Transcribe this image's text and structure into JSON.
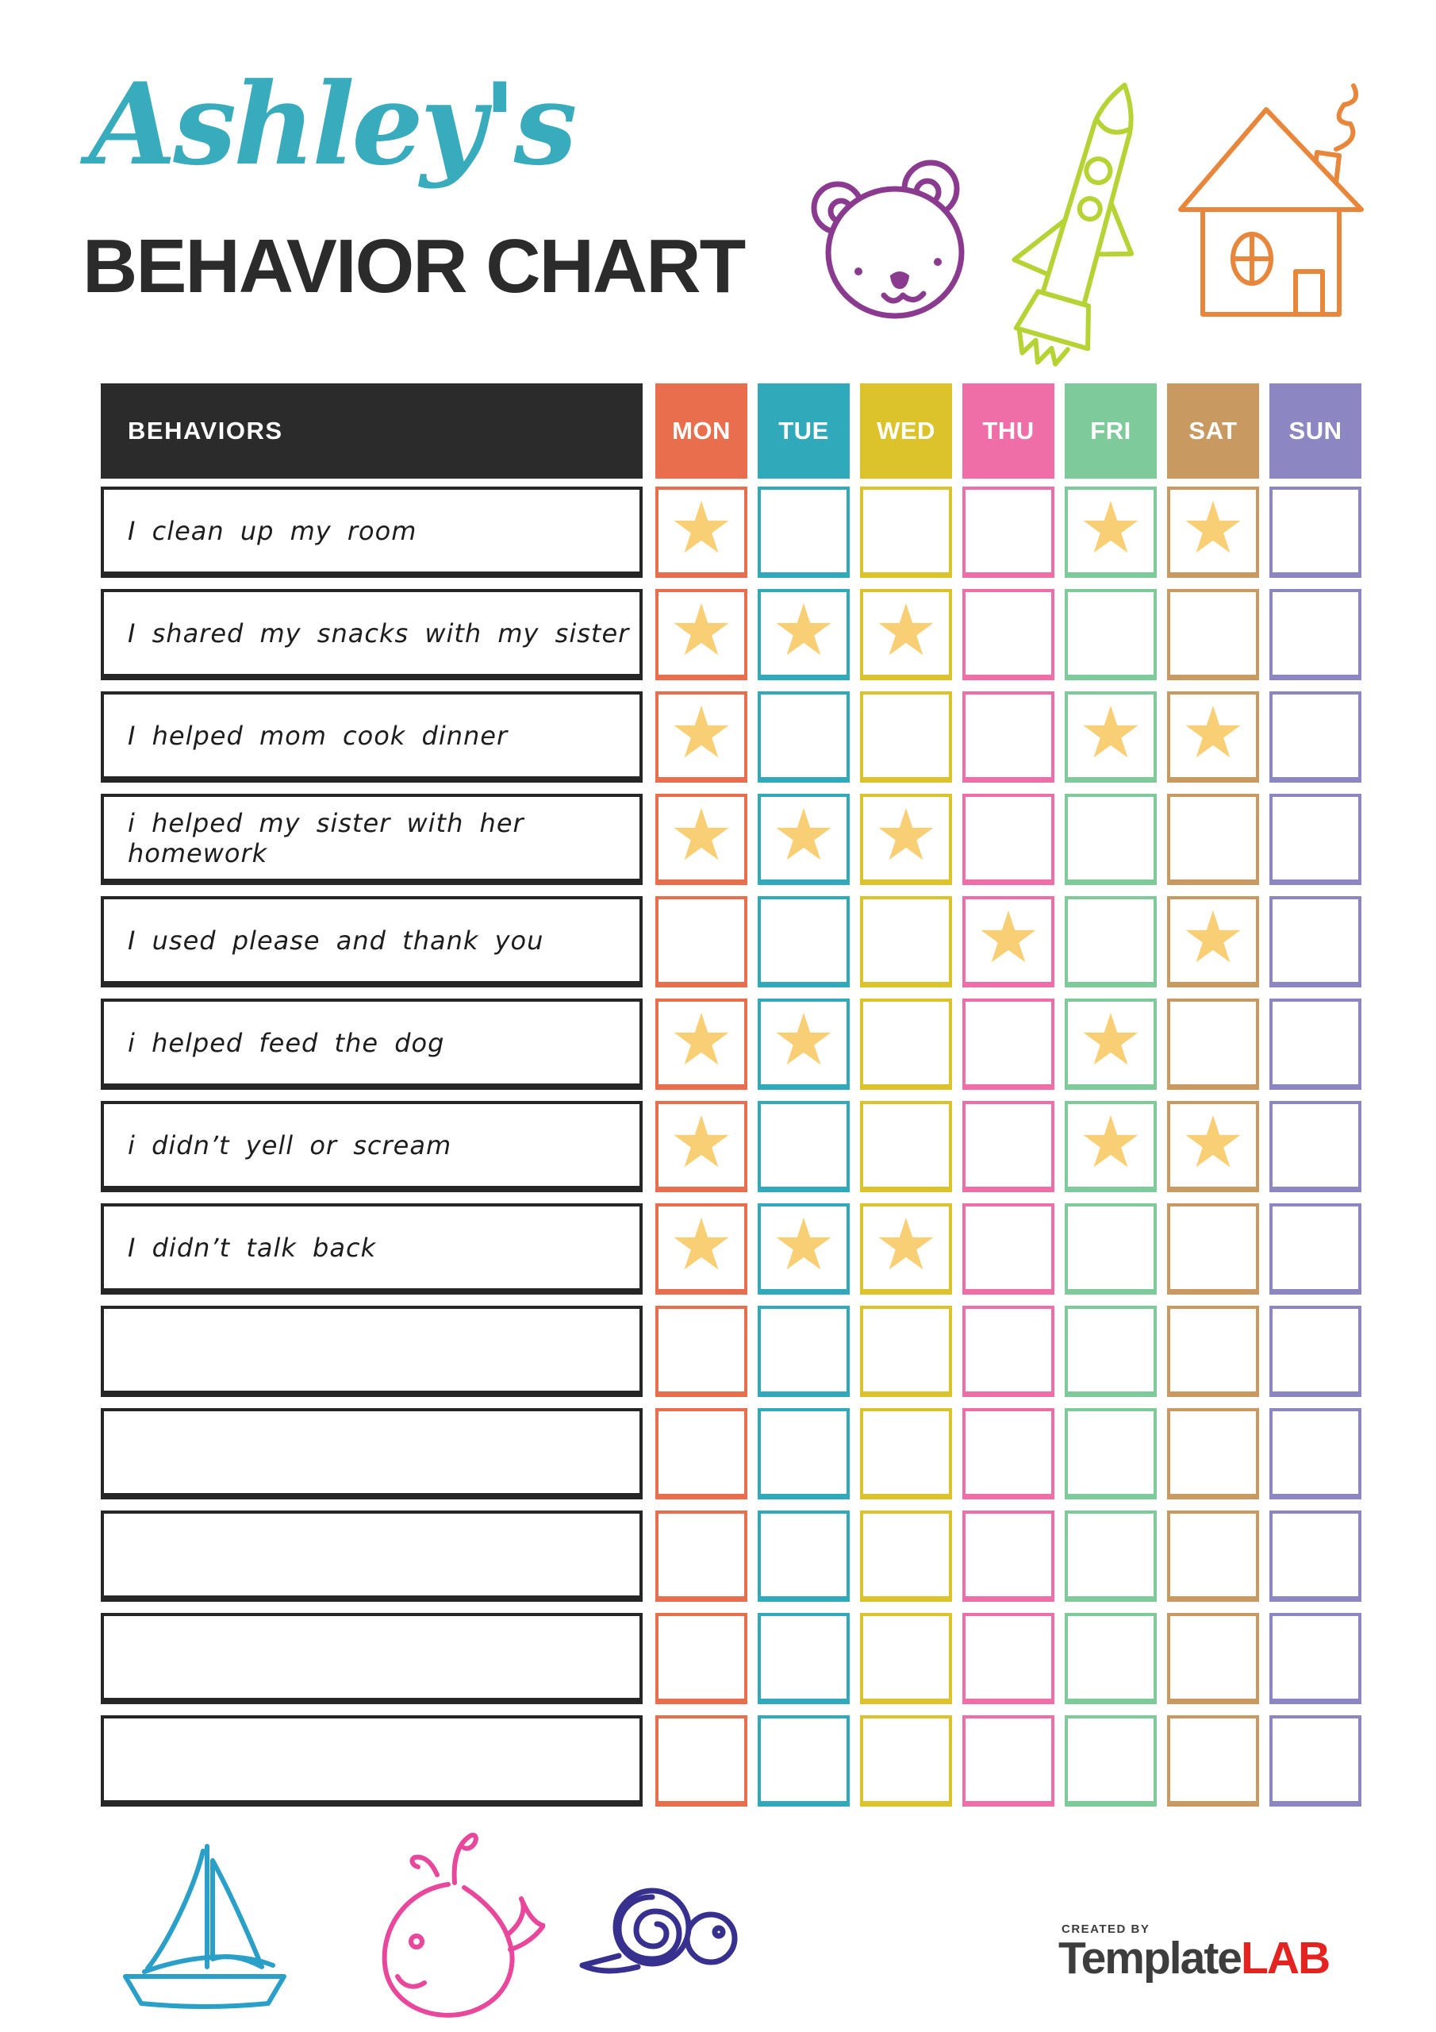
{
  "title": {
    "name": "Ashley's",
    "subtitle": "BEHAVIOR CHART"
  },
  "chart": {
    "behaviors_header": "BEHAVIORS",
    "days": [
      {
        "label": "MON",
        "color": "#E96E4E"
      },
      {
        "label": "TUE",
        "color": "#30A9BB"
      },
      {
        "label": "WED",
        "color": "#DCC32C"
      },
      {
        "label": "THU",
        "color": "#EF6EA8"
      },
      {
        "label": "FRI",
        "color": "#7FCA9B"
      },
      {
        "label": "SAT",
        "color": "#C89A62"
      },
      {
        "label": "SUN",
        "color": "#8C86C3"
      }
    ],
    "star_icon": "star",
    "star_color": "#F8CF74",
    "rows": [
      {
        "label": "I clean up my room",
        "stars": [
          0,
          4,
          5
        ]
      },
      {
        "label": "I shared my snacks with my sister",
        "stars": [
          0,
          1,
          2
        ]
      },
      {
        "label": "I helped mom cook dinner",
        "stars": [
          0,
          4,
          5
        ]
      },
      {
        "label": "i helped my sister with her homework",
        "stars": [
          0,
          1,
          2
        ]
      },
      {
        "label": "I used please and thank you",
        "stars": [
          3,
          5
        ]
      },
      {
        "label": "i helped feed the dog",
        "stars": [
          0,
          1,
          4
        ]
      },
      {
        "label": "i didn’t yell or scream",
        "stars": [
          0,
          4,
          5
        ]
      },
      {
        "label": "I didn’t talk back",
        "stars": [
          0,
          1,
          2
        ]
      },
      {
        "label": "",
        "stars": []
      },
      {
        "label": "",
        "stars": []
      },
      {
        "label": "",
        "stars": []
      },
      {
        "label": "",
        "stars": []
      },
      {
        "label": "",
        "stars": []
      }
    ]
  },
  "doodles": {
    "top": [
      "teddy-bear-doodle",
      "rocket-doodle",
      "house-doodle"
    ],
    "bottom": [
      "sailboat-doodle",
      "whale-doodle",
      "snail-doodle"
    ],
    "colors": {
      "teddy_bear": "#8A3B8F",
      "rocket": "#B5D334",
      "house": "#E8873B",
      "sailboat": "#2A9FC8",
      "whale": "#E8479B",
      "snail": "#37308E"
    }
  },
  "footer_logo": {
    "created_by": "CREATED BY",
    "brand": "Template",
    "brand_accent": "LAB",
    "brand_color": "#3D3D3D",
    "accent_color": "#E3231F"
  }
}
